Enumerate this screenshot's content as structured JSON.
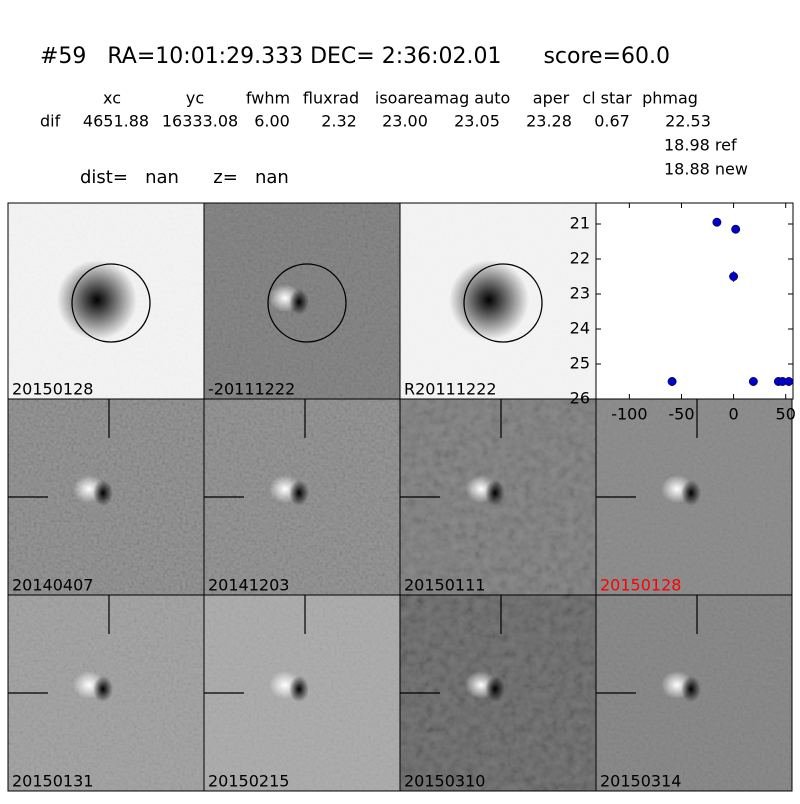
{
  "header": {
    "title": "#59   RA=10:01:29.333 DEC= 2:36:02.01      score=60.0",
    "distance_line": "dist=   nan      z=   nan"
  },
  "table": {
    "columns": [
      "xc",
      "yc",
      "fwhm",
      "fluxrad",
      "isoarea",
      "mag auto",
      "aper",
      "cl star",
      "phmag"
    ],
    "row_label": "dif",
    "values": [
      "4651.88",
      "16333.08",
      "6.00",
      "2.32",
      "23.00",
      "23.05",
      "23.28",
      "0.67",
      "22.53"
    ],
    "extra_lines": [
      "18.98 ref",
      "18.88 new"
    ]
  },
  "panels": [
    {
      "label": "20150128",
      "color": "#000000"
    },
    {
      "label": "-20111222",
      "color": "#000000"
    },
    {
      "label": "R20111222",
      "color": "#000000"
    },
    {
      "label": "20140407",
      "color": "#000000"
    },
    {
      "label": "20141203",
      "color": "#000000"
    },
    {
      "label": "20150111",
      "color": "#000000"
    },
    {
      "label": "20150128",
      "color": "#ff0000"
    },
    {
      "label": "20150131",
      "color": "#000000"
    },
    {
      "label": "20150215",
      "color": "#000000"
    },
    {
      "label": "20150310",
      "color": "#000000"
    },
    {
      "label": "20150314",
      "color": "#000000"
    }
  ],
  "chart_data": {
    "type": "scatter",
    "color": "#0000cc",
    "x": [
      -59,
      -16,
      2,
      0,
      19,
      43,
      47,
      53
    ],
    "values": [
      25.5,
      20.95,
      21.15,
      22.5,
      25.5,
      25.5,
      25.5,
      25.5
    ],
    "errors": [
      0.1,
      0.05,
      0.05,
      0.15,
      0.1,
      0.1,
      0.1,
      0.1
    ],
    "xlim": [
      -132,
      57
    ],
    "ylim": [
      26,
      20.4
    ],
    "xticks": [
      -100,
      -50,
      0,
      50
    ],
    "yticks": [
      21,
      22,
      23,
      24,
      25,
      26
    ]
  }
}
